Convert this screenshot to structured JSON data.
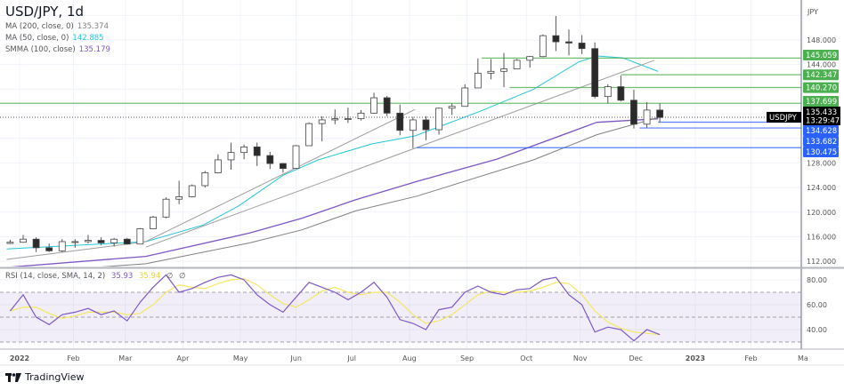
{
  "header": {
    "title": "USD/JPY, 1d",
    "indicators": [
      {
        "label": "MA (200, close, 0)",
        "value": "135.374",
        "color": "#808080"
      },
      {
        "label": "MA (50, close, 0)",
        "value": "142.885",
        "color": "#26c6da"
      },
      {
        "label": "SMMA (100, close)",
        "value": "135.179",
        "color": "#7e57c2"
      }
    ]
  },
  "rsi_legend": {
    "label": "RSI (14, close, SMA, 14, 2)",
    "value": "35.93",
    "ma_value": "35.94",
    "extra1": "∅",
    "extra2": "∅"
  },
  "branding": {
    "name": "TradingView"
  },
  "chart_data": {
    "type": "candlestick",
    "symbol": "USDJPY",
    "currency_label": "JPY",
    "price_ticks": [
      "112.000",
      "116.000",
      "120.000",
      "124.000",
      "128.000",
      "144.000",
      "148.000"
    ],
    "ylim": [
      111,
      153
    ],
    "time_ticks": [
      {
        "label": "2022",
        "date": "2022-01-03"
      },
      {
        "label": "Feb",
        "date": "2022-02-01"
      },
      {
        "label": "Mar",
        "date": "2022-03-01"
      },
      {
        "label": "Apr",
        "date": "2022-04-01"
      },
      {
        "label": "May",
        "date": "2022-05-02"
      },
      {
        "label": "Jun",
        "date": "2022-06-01"
      },
      {
        "label": "Jul",
        "date": "2022-07-01"
      },
      {
        "label": "Aug",
        "date": "2022-08-01"
      },
      {
        "label": "Sep",
        "date": "2022-09-01"
      },
      {
        "label": "Oct",
        "date": "2022-10-03"
      },
      {
        "label": "Nov",
        "date": "2022-11-01"
      },
      {
        "label": "Dec",
        "date": "2022-12-01"
      },
      {
        "label": "2023",
        "date": "2023-01-02"
      },
      {
        "label": "Feb",
        "date": "2023-02-01"
      },
      {
        "label": "Ma",
        "date": "2023-03-01"
      }
    ],
    "colors": {
      "up": "#ffffff",
      "down": "#2a2a2a",
      "wick": "#555555",
      "support": "#4caf50",
      "resistance_blue": "#2962ff"
    },
    "candles": [
      [
        "2021-12-27",
        114.9,
        115.5,
        114.8,
        115.1
      ],
      [
        "2022-01-03",
        115.1,
        116.3,
        115.0,
        115.6
      ],
      [
        "2022-01-10",
        115.6,
        115.9,
        113.5,
        114.2
      ],
      [
        "2022-01-17",
        114.2,
        114.9,
        113.5,
        113.7
      ],
      [
        "2022-01-24",
        113.7,
        115.6,
        113.5,
        115.2
      ],
      [
        "2022-01-31",
        115.2,
        115.6,
        114.2,
        115.2
      ],
      [
        "2022-02-07",
        115.2,
        116.3,
        114.9,
        115.4
      ],
      [
        "2022-02-14",
        115.4,
        115.9,
        114.6,
        115.0
      ],
      [
        "2022-02-21",
        115.0,
        115.8,
        114.4,
        115.6
      ],
      [
        "2022-02-28",
        115.6,
        115.8,
        114.7,
        114.8
      ],
      [
        "2022-03-07",
        114.8,
        117.4,
        114.8,
        117.3
      ],
      [
        "2022-03-14",
        117.3,
        119.4,
        117.3,
        119.2
      ],
      [
        "2022-03-21",
        119.2,
        122.4,
        119.0,
        122.1
      ],
      [
        "2022-03-28",
        122.1,
        125.1,
        121.3,
        122.5
      ],
      [
        "2022-04-04",
        122.5,
        124.5,
        122.4,
        124.3
      ],
      [
        "2022-04-11",
        124.3,
        126.7,
        124.0,
        126.4
      ],
      [
        "2022-04-18",
        126.4,
        129.4,
        126.3,
        128.5
      ],
      [
        "2022-04-25",
        128.5,
        131.3,
        126.9,
        129.7
      ],
      [
        "2022-05-02",
        129.7,
        131.0,
        128.6,
        130.6
      ],
      [
        "2022-05-09",
        130.6,
        131.3,
        127.5,
        129.2
      ],
      [
        "2022-05-16",
        129.2,
        129.8,
        127.0,
        127.9
      ],
      [
        "2022-05-23",
        127.9,
        128.0,
        126.4,
        127.1
      ],
      [
        "2022-05-30",
        127.1,
        130.9,
        127.0,
        130.8
      ],
      [
        "2022-06-06",
        130.8,
        134.6,
        130.8,
        134.4
      ],
      [
        "2022-06-13",
        134.4,
        135.6,
        131.5,
        135.0
      ],
      [
        "2022-06-20",
        135.0,
        136.7,
        134.3,
        135.2
      ],
      [
        "2022-06-27",
        135.2,
        137.0,
        134.5,
        135.2
      ],
      [
        "2022-07-04",
        135.2,
        136.6,
        134.9,
        136.1
      ],
      [
        "2022-07-11",
        136.1,
        139.4,
        136.0,
        138.6
      ],
      [
        "2022-07-18",
        138.6,
        138.9,
        135.6,
        136.1
      ],
      [
        "2022-07-25",
        136.1,
        137.5,
        132.5,
        133.3
      ],
      [
        "2022-08-01",
        133.3,
        135.5,
        130.4,
        135.0
      ],
      [
        "2022-08-08",
        135.0,
        135.6,
        131.7,
        133.4
      ],
      [
        "2022-08-15",
        133.4,
        137.0,
        132.6,
        136.9
      ],
      [
        "2022-08-22",
        136.9,
        137.7,
        135.8,
        137.2
      ],
      [
        "2022-08-29",
        137.2,
        140.8,
        137.2,
        140.2
      ],
      [
        "2022-09-05",
        140.2,
        145.0,
        140.2,
        142.6
      ],
      [
        "2022-09-12",
        142.6,
        144.9,
        141.6,
        142.9
      ],
      [
        "2022-09-19",
        142.9,
        145.9,
        140.3,
        143.3
      ],
      [
        "2022-09-26",
        143.3,
        144.9,
        143.3,
        144.7
      ],
      [
        "2022-10-03",
        144.7,
        145.4,
        143.5,
        145.3
      ],
      [
        "2022-10-10",
        145.3,
        148.9,
        145.2,
        148.7
      ],
      [
        "2022-10-17",
        148.7,
        151.9,
        146.2,
        147.7
      ],
      [
        "2022-10-24",
        147.7,
        149.7,
        145.5,
        147.5
      ],
      [
        "2022-10-31",
        147.5,
        148.8,
        145.7,
        146.6
      ],
      [
        "2022-11-07",
        146.6,
        147.6,
        138.5,
        138.8
      ],
      [
        "2022-11-14",
        138.8,
        140.8,
        137.7,
        140.4
      ],
      [
        "2022-11-21",
        140.4,
        142.2,
        138.0,
        138.2
      ],
      [
        "2022-11-28",
        138.2,
        139.9,
        133.6,
        134.3
      ],
      [
        "2022-12-05",
        134.3,
        137.9,
        133.7,
        136.6
      ],
      [
        "2022-12-12",
        136.6,
        137.7,
        134.6,
        135.4
      ]
    ],
    "ma200": [
      [
        "2021-12-27",
        110.0
      ],
      [
        "2022-03-12",
        111.6
      ],
      [
        "2022-05-07",
        115.0
      ],
      [
        "2022-06-04",
        117.1
      ],
      [
        "2022-07-03",
        120.2
      ],
      [
        "2022-08-05",
        122.6
      ],
      [
        "2022-10-07",
        128.5
      ],
      [
        "2022-11-10",
        132.6
      ],
      [
        "2022-12-13",
        135.374
      ]
    ],
    "ma50": [
      [
        "2021-12-27",
        114.0
      ],
      [
        "2022-03-12",
        115.2
      ],
      [
        "2022-04-12",
        117.9
      ],
      [
        "2022-05-01",
        121.0
      ],
      [
        "2022-05-25",
        126.0
      ],
      [
        "2022-06-13",
        128.5
      ],
      [
        "2022-07-12",
        131.1
      ],
      [
        "2022-08-04",
        132.4
      ],
      [
        "2022-09-08",
        136.4
      ],
      [
        "2022-10-07",
        140.0
      ],
      [
        "2022-10-31",
        144.4
      ],
      [
        "2022-11-10",
        145.4
      ],
      [
        "2022-11-24",
        145.1
      ],
      [
        "2022-12-13",
        142.885
      ]
    ],
    "smma100": [
      [
        "2021-12-27",
        111.0
      ],
      [
        "2022-03-12",
        112.8
      ],
      [
        "2022-05-07",
        116.6
      ],
      [
        "2022-06-04",
        119.0
      ],
      [
        "2022-07-03",
        122.0
      ],
      [
        "2022-08-05",
        125.0
      ],
      [
        "2022-09-17",
        128.6
      ],
      [
        "2022-11-10",
        134.6
      ],
      [
        "2022-12-13",
        135.179
      ]
    ],
    "trendlines": [
      [
        [
          "2021-12-27",
          112.3
        ],
        [
          "2022-03-12",
          115.2
        ]
      ],
      [
        [
          "2022-03-12",
          114.3
        ],
        [
          "2022-12-11",
          144.7
        ]
      ],
      [
        [
          "2022-03-12",
          115.2
        ],
        [
          "2022-08-04",
          136.7
        ]
      ]
    ],
    "levels": [
      {
        "price": 145.059,
        "label": "145.059",
        "from": "2022-09-09",
        "color": "#4caf50"
      },
      {
        "price": 142.347,
        "label": "142.347",
        "from": "2022-11-23",
        "color": "#4caf50"
      },
      {
        "price": 140.27,
        "label": "140.270",
        "from": "2022-09-24",
        "color": "#4caf50"
      },
      {
        "price": 137.699,
        "label": "137.699",
        "from": "2021-12-20",
        "color": "#4caf50"
      },
      {
        "price": 134.628,
        "label": "134.628",
        "from": "2022-12-13",
        "color": "#2962ff"
      },
      {
        "price": 133.682,
        "label": "133.682",
        "from": "2022-12-03",
        "color": "#2962ff"
      },
      {
        "price": 130.475,
        "label": "130.475",
        "from": "2022-08-05",
        "color": "#2962ff"
      }
    ],
    "last_price": {
      "price": 135.433,
      "label": "135.433",
      "countdown": "13:29:47"
    },
    "rsi": {
      "ticks": [
        "80.00",
        "60.00",
        "40.00"
      ],
      "band": [
        30,
        70
      ],
      "mid": 50,
      "colors": {
        "rsi": "#7e57c2",
        "ma": "#f5e663",
        "band": "#7e57c2"
      },
      "values": [
        55,
        68,
        50,
        44,
        52,
        54,
        57,
        52,
        55,
        47,
        62,
        74,
        84,
        70,
        73,
        78,
        82,
        84,
        80,
        68,
        60,
        54,
        66,
        78,
        74,
        70,
        64,
        70,
        78,
        66,
        48,
        45,
        40,
        56,
        58,
        70,
        75,
        70,
        68,
        72,
        73,
        80,
        82,
        68,
        60,
        38,
        42,
        40,
        31,
        40,
        35.93
      ],
      "ma": [
        55,
        58,
        58,
        53,
        49,
        51,
        54,
        54,
        54,
        52,
        53,
        60,
        70,
        76,
        74,
        73,
        77,
        80,
        81,
        76,
        68,
        61,
        58,
        64,
        71,
        74,
        70,
        68,
        70,
        70,
        62,
        52,
        45,
        47,
        52,
        60,
        68,
        71,
        70,
        70,
        71,
        74,
        78,
        77,
        68,
        55,
        46,
        41,
        38,
        37,
        35.94
      ]
    }
  }
}
